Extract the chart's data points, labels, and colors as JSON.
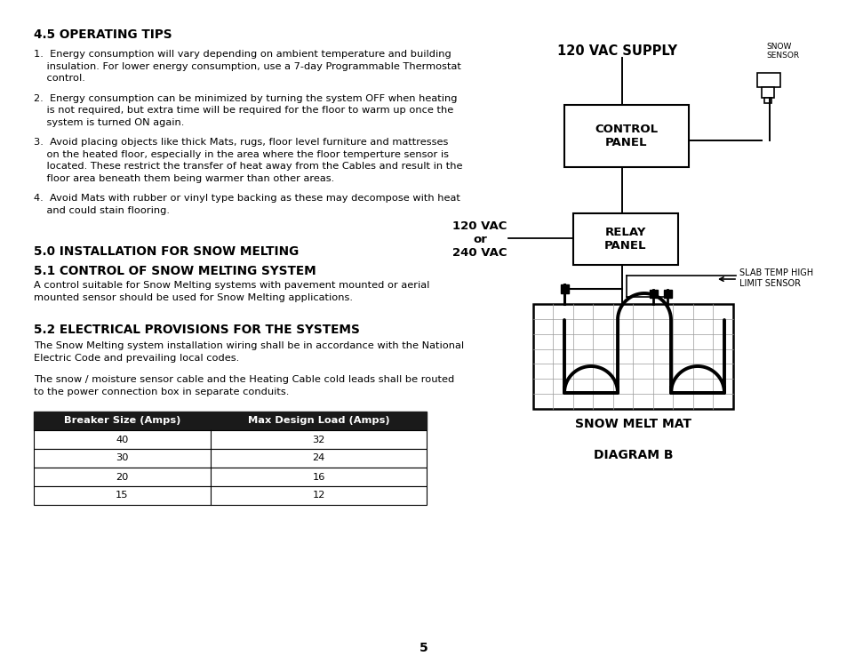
{
  "bg_color": "#ffffff",
  "page_number": "5",
  "section_45_title": "4.5 OPERATING TIPS",
  "items_45": [
    "1.  Energy consumption will vary depending on ambient temperature and building\n    insulation. For lower energy consumption, use a 7-day Programmable Thermostat\n    control.",
    "2.  Energy consumption can be minimized by turning the system OFF when heating\n    is not required, but extra time will be required for the floor to warm up once the\n    system is turned ON again.",
    "3.  Avoid placing objects like thick Mats, rugs, floor level furniture and mattresses\n    on the heated floor, especially in the area where the floor temperture sensor is\n    located. These restrict the transfer of heat away from the Cables and result in the\n    floor area beneath them being warmer than other areas.",
    "4.  Avoid Mats with rubber or vinyl type backing as these may decompose with heat\n    and could stain flooring."
  ],
  "section_50_title": "5.0 INSTALLATION FOR SNOW MELTING",
  "section_51_title": "5.1 CONTROL OF SNOW MELTING SYSTEM",
  "section_51_body": "A control suitable for Snow Melting systems with pavement mounted or aerial\nmounted sensor should be used for Snow Melting applications.",
  "section_52_title": "5.2 ELECTRICAL PROVISIONS FOR THE SYSTEMS",
  "section_52_body1": "The Snow Melting system installation wiring shall be in accordance with the National\nElectric Code and prevailing local codes.",
  "section_52_body2": "The snow / moisture sensor cable and the Heating Cable cold leads shall be routed\nto the power connection box in separate conduits.",
  "table_headers": [
    "Breaker Size (Amps)",
    "Max Design Load (Amps)"
  ],
  "table_rows": [
    [
      "40",
      "32"
    ],
    [
      "30",
      "24"
    ],
    [
      "20",
      "16"
    ],
    [
      "15",
      "12"
    ]
  ],
  "diagram_title": "120 VAC SUPPLY",
  "diagram_label_snow_sensor": "SNOW\nSENSOR",
  "diagram_label_control": "CONTROL\nPANEL",
  "diagram_label_120vac": "120 VAC\nor\n240 VAC",
  "diagram_label_relay": "RELAY\nPANEL",
  "diagram_label_slab": "SLAB TEMP HIGH\nLIMIT SENSOR",
  "diagram_label_mat": "SNOW MELT MAT",
  "diagram_label_diagramb": "DIAGRAM B"
}
